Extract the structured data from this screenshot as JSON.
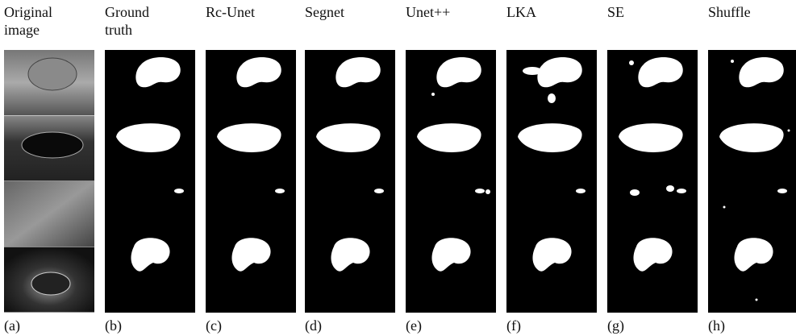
{
  "columns": [
    {
      "title": "Original image",
      "label": "(a)"
    },
    {
      "title": "Ground truth",
      "label": "(b)"
    },
    {
      "title": "Rc-Unet",
      "label": "(c)"
    },
    {
      "title": "Segnet",
      "label": "(d)"
    },
    {
      "title": "Unet++",
      "label": "(e)"
    },
    {
      "title": "LKA",
      "label": "(f)"
    },
    {
      "title": "SE",
      "label": "(g)"
    },
    {
      "title": "Shuffle",
      "label": "(h)"
    }
  ]
}
